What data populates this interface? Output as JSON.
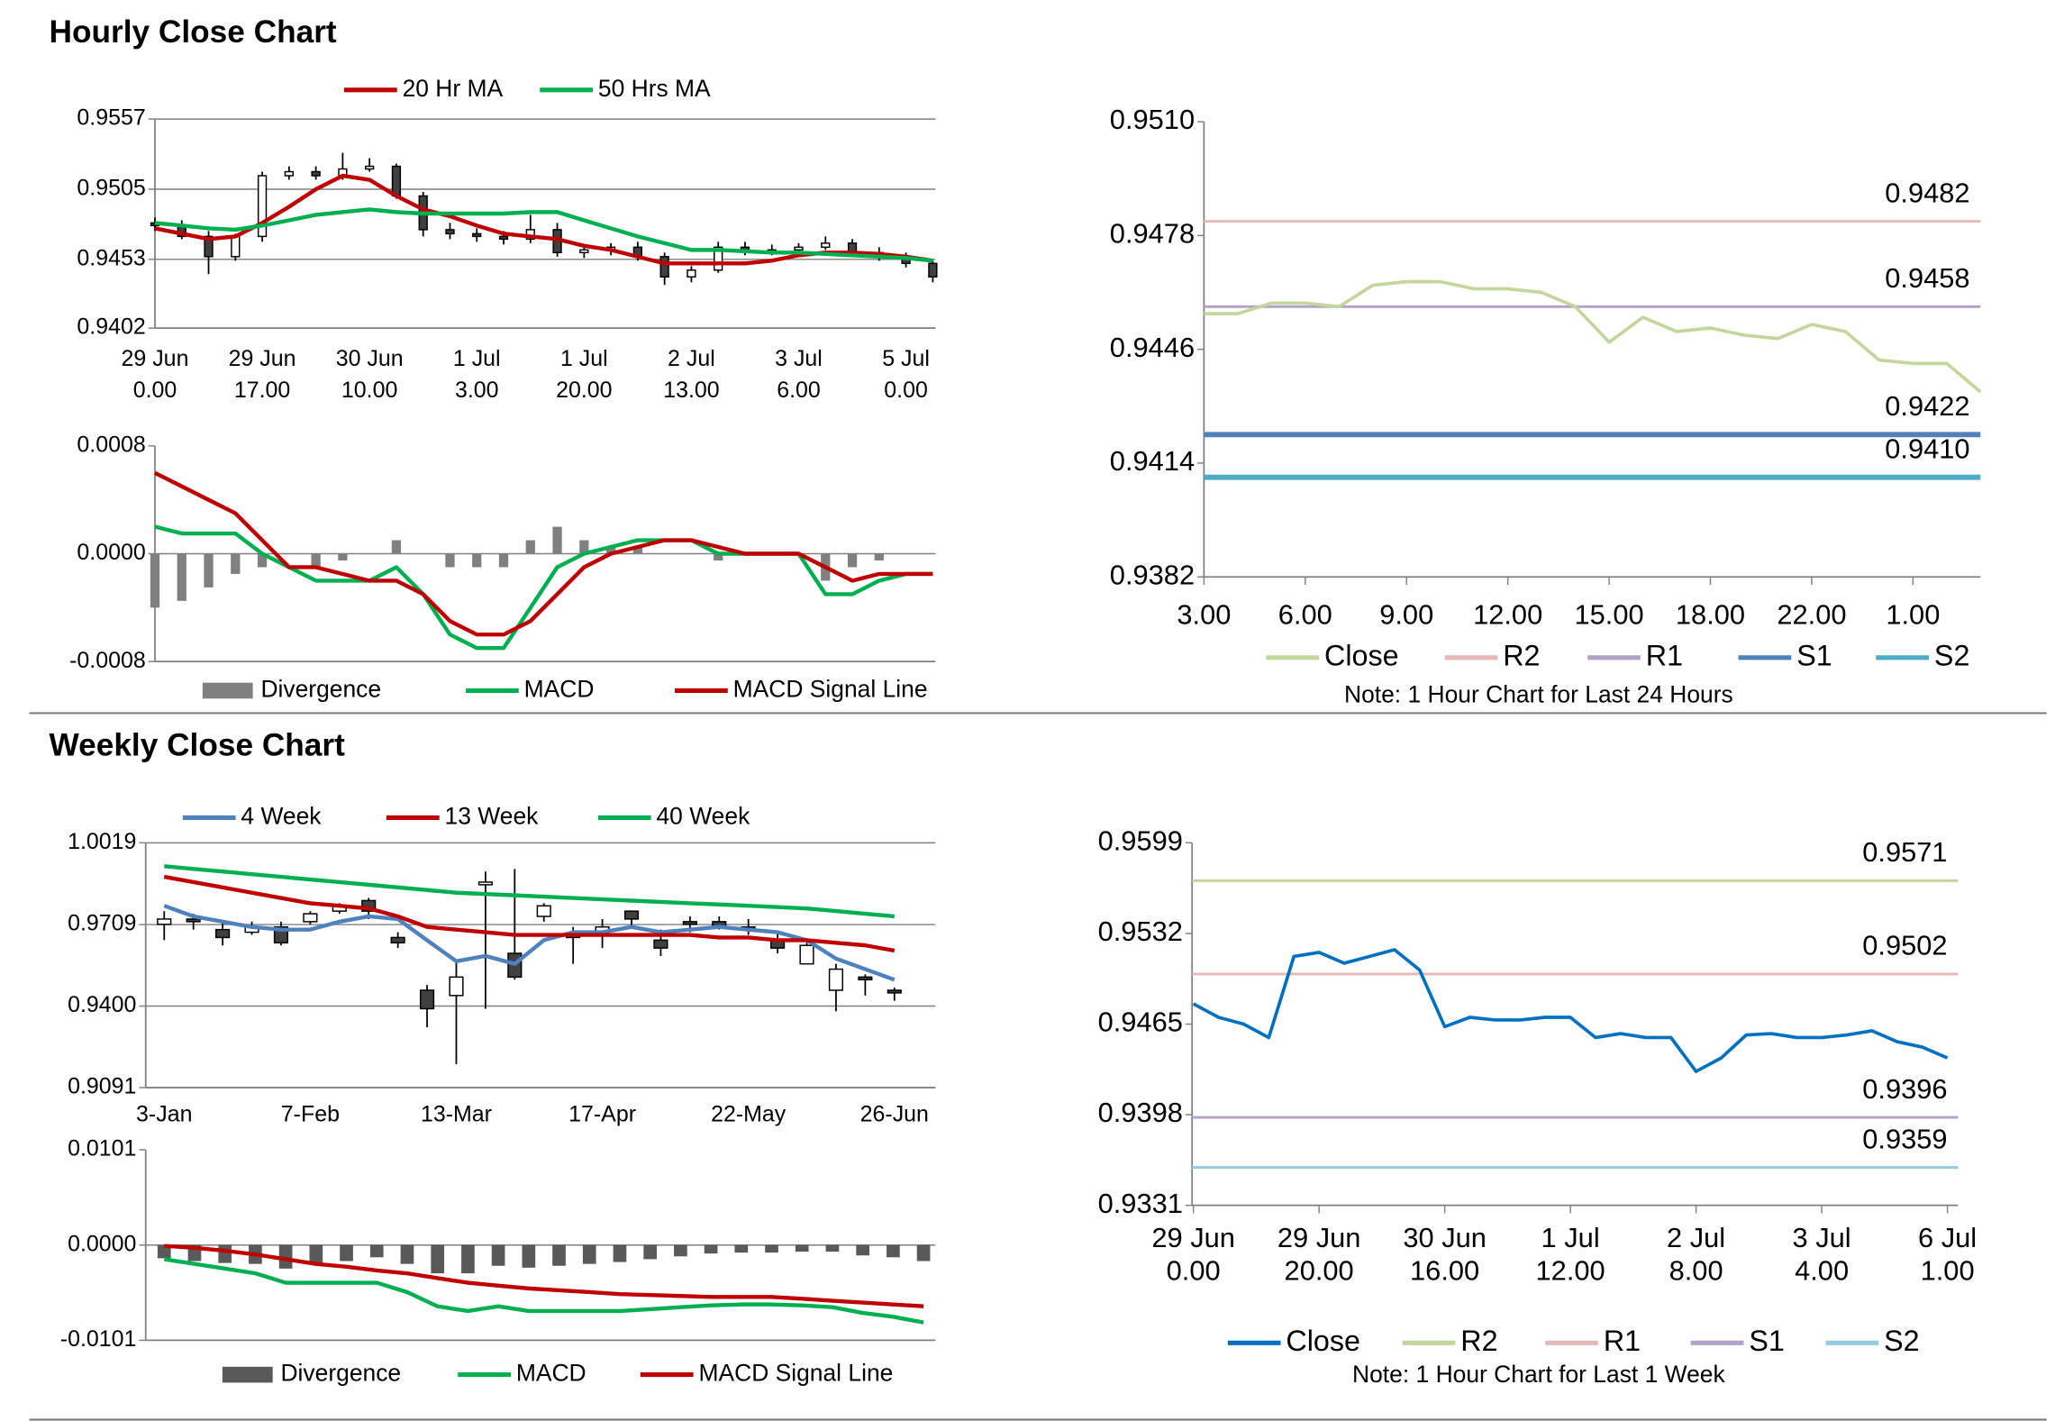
{
  "section_titles": [
    "Hourly Close Chart",
    "Weekly Close Chart"
  ],
  "chart_data": [
    {
      "type": "candlestick",
      "ylim": [
        0.9402,
        0.9557
      ],
      "yticks": [
        0.9402,
        0.9453,
        0.9505,
        0.9557
      ],
      "grid": true,
      "categories": [
        [
          "29 Jun",
          "0.00"
        ],
        null,
        null,
        null,
        [
          "29 Jun",
          "17.00"
        ],
        null,
        null,
        null,
        [
          "30 Jun",
          "10.00"
        ],
        null,
        null,
        null,
        [
          "1 Jul",
          "3.00"
        ],
        null,
        null,
        null,
        [
          "1 Jul",
          "20.00"
        ],
        null,
        null,
        null,
        [
          "2 Jul",
          "13.00"
        ],
        null,
        null,
        null,
        [
          "3 Jul",
          "6.00"
        ],
        null,
        null,
        null,
        [
          "5 Jul",
          "0.00"
        ],
        null
      ],
      "open": [
        0.948,
        0.9478,
        0.947,
        0.9455,
        0.947,
        0.9515,
        0.9518,
        0.9515,
        0.952,
        0.9522,
        0.95,
        0.9475,
        0.9472,
        0.947,
        0.9468,
        0.9475,
        0.9458,
        0.946,
        0.9462,
        0.9455,
        0.944,
        0.9445,
        0.9462,
        0.946,
        0.946,
        0.9462,
        0.9465,
        0.9458,
        0.9455,
        0.945
      ],
      "high": [
        0.9484,
        0.9482,
        0.9474,
        0.9472,
        0.9518,
        0.9522,
        0.9522,
        0.9532,
        0.9528,
        0.9524,
        0.9503,
        0.948,
        0.9476,
        0.9474,
        0.9486,
        0.948,
        0.9463,
        0.9465,
        0.9466,
        0.9458,
        0.9448,
        0.9466,
        0.9466,
        0.9464,
        0.9465,
        0.947,
        0.9468,
        0.9462,
        0.9458,
        0.9452
      ],
      "low": [
        0.9474,
        0.9468,
        0.9442,
        0.9452,
        0.9466,
        0.9512,
        0.9512,
        0.9512,
        0.9518,
        0.9498,
        0.947,
        0.9468,
        0.9466,
        0.9464,
        0.9465,
        0.9455,
        0.9454,
        0.9456,
        0.9452,
        0.9434,
        0.9436,
        0.9443,
        0.9456,
        0.9456,
        0.9457,
        0.946,
        0.9455,
        0.9452,
        0.9447,
        0.9436
      ],
      "close": [
        0.9478,
        0.947,
        0.9455,
        0.947,
        0.9515,
        0.9518,
        0.9515,
        0.952,
        0.9522,
        0.95,
        0.9475,
        0.9472,
        0.947,
        0.9468,
        0.9475,
        0.9458,
        0.946,
        0.9462,
        0.9455,
        0.944,
        0.9445,
        0.9462,
        0.946,
        0.946,
        0.9462,
        0.9465,
        0.9458,
        0.9455,
        0.945,
        0.944
      ],
      "series": [
        {
          "name": "20 Hr MA",
          "color": "#c00000",
          "values": [
            0.9476,
            0.9472,
            0.9468,
            0.947,
            0.948,
            0.9492,
            0.9505,
            0.9515,
            0.9512,
            0.95,
            0.949,
            0.9485,
            0.9478,
            0.9472,
            0.947,
            0.9468,
            0.9463,
            0.946,
            0.9455,
            0.945,
            0.945,
            0.945,
            0.945,
            0.9452,
            0.9456,
            0.9458,
            0.9458,
            0.9457,
            0.9455,
            0.9452
          ]
        },
        {
          "name": "50 Hrs MA",
          "color": "#00b050",
          "values": [
            0.948,
            0.9478,
            0.9476,
            0.9475,
            0.9478,
            0.9482,
            0.9486,
            0.9488,
            0.949,
            0.9488,
            0.9487,
            0.9487,
            0.9487,
            0.9487,
            0.9488,
            0.9488,
            0.9482,
            0.9476,
            0.947,
            0.9465,
            0.946,
            0.946,
            0.9459,
            0.9458,
            0.9458,
            0.9457,
            0.9456,
            0.9455,
            0.9454,
            0.9452
          ]
        }
      ]
    },
    {
      "type": "macd",
      "ylim": [
        -0.0008,
        0.0008
      ],
      "yticks": [
        -0.0008,
        {
          "value": 0,
          "label": "0.0000"
        },
        0.0008
      ],
      "grid": false,
      "series": [
        {
          "name": "Divergence",
          "type": "bar",
          "color": "#808080",
          "values": [
            -0.0004,
            -0.00035,
            -0.00025,
            -0.00015,
            -0.0001,
            0,
            -0.0001,
            -5e-05,
            0,
            0.0001,
            0,
            -0.0001,
            -0.0001,
            -0.0001,
            0.0001,
            0.0002,
            0.0001,
            5e-05,
            5e-05,
            0,
            0,
            -5e-05,
            0,
            0,
            0,
            -0.0002,
            -0.0001,
            -5e-05,
            0,
            0
          ]
        },
        {
          "name": "MACD",
          "type": "line",
          "color": "#00b050",
          "values": [
            0.0002,
            0.00015,
            0.00015,
            0.00015,
            0,
            -0.0001,
            -0.0002,
            -0.0002,
            -0.0002,
            -0.0001,
            -0.0003,
            -0.0006,
            -0.0007,
            -0.0007,
            -0.0004,
            -0.0001,
            0,
            5e-05,
            0.0001,
            0.0001,
            0.0001,
            0,
            0,
            0,
            0,
            -0.0003,
            -0.0003,
            -0.0002,
            -0.00015,
            -0.00015
          ]
        },
        {
          "name": "MACD Signal Line",
          "type": "line",
          "color": "#c00000",
          "values": [
            0.0006,
            0.0005,
            0.0004,
            0.0003,
            0.0001,
            -0.0001,
            -0.0001,
            -0.00015,
            -0.0002,
            -0.0002,
            -0.0003,
            -0.0005,
            -0.0006,
            -0.0006,
            -0.0005,
            -0.0003,
            -0.0001,
            0,
            5e-05,
            0.0001,
            0.0001,
            5e-05,
            0,
            0,
            0,
            -0.0001,
            -0.0002,
            -0.00015,
            -0.00015,
            -0.00015
          ]
        }
      ]
    },
    {
      "type": "line",
      "ylim": [
        0.9382,
        0.951
      ],
      "yticks": [
        0.9382,
        0.9414,
        0.9446,
        0.9478,
        {
          "value": 0.951,
          "label": "0.9510"
        }
      ],
      "grid": false,
      "categories": [
        "3.00",
        null,
        null,
        "6.00",
        null,
        null,
        "9.00",
        null,
        null,
        "12.00",
        null,
        null,
        "15.00",
        null,
        null,
        "18.00",
        null,
        null,
        "22.00",
        null,
        null,
        "1.00",
        null,
        null
      ],
      "series": [
        {
          "name": "Close",
          "color": "#c3d69b",
          "values": [
            0.9456,
            0.9456,
            0.9459,
            0.9459,
            0.9458,
            0.9464,
            0.9465,
            0.9465,
            0.9463,
            0.9463,
            0.9462,
            0.9458,
            0.9448,
            0.9455,
            0.9451,
            0.9452,
            0.945,
            0.9449,
            0.9453,
            0.9451,
            0.9443,
            0.9442,
            0.9442,
            0.9434
          ]
        }
      ],
      "levels": [
        {
          "name": "R2",
          "value": 0.9482,
          "color": "#e6b9b8"
        },
        {
          "name": "R1",
          "value": 0.9458,
          "color": "#b3a2c7"
        },
        {
          "name": "S1",
          "value": 0.9422,
          "color": "#4f81bd"
        },
        {
          "name": "S2",
          "value": 0.941,
          "value_label": "0.9410",
          "color": "#4bacc6"
        }
      ],
      "note": "Note: 1 Hour Chart for Last 24 Hours"
    },
    {
      "type": "candlestick",
      "ylim": [
        0.9091,
        1.0019
      ],
      "yticks": [
        0.9091,
        {
          "value": 0.94,
          "label": "0.9400"
        },
        0.9709,
        1.0019
      ],
      "grid": true,
      "categories": [
        "3-Jan",
        null,
        null,
        null,
        null,
        "7-Feb",
        null,
        null,
        null,
        null,
        "13-Mar",
        null,
        null,
        null,
        null,
        "17-Apr",
        null,
        null,
        null,
        null,
        "22-May",
        null,
        null,
        null,
        null,
        "26-Jun"
      ],
      "open": [
        0.971,
        0.973,
        0.969,
        0.968,
        0.97,
        0.972,
        0.976,
        0.98,
        0.966,
        0.946,
        0.944,
        0.986,
        0.96,
        0.974,
        0.967,
        0.968,
        0.976,
        0.965,
        0.972,
        0.972,
        0.97,
        0.965,
        0.956,
        0.946,
        0.951,
        0.946
      ],
      "high": [
        0.976,
        0.975,
        0.972,
        0.972,
        0.972,
        0.976,
        0.979,
        0.981,
        0.968,
        0.948,
        0.957,
        0.991,
        0.992,
        0.979,
        0.97,
        0.973,
        0.976,
        0.969,
        0.974,
        0.974,
        0.973,
        0.968,
        0.964,
        0.956,
        0.952,
        0.947
      ],
      "low": [
        0.965,
        0.969,
        0.963,
        0.967,
        0.963,
        0.971,
        0.975,
        0.973,
        0.962,
        0.932,
        0.918,
        0.939,
        0.95,
        0.972,
        0.956,
        0.962,
        0.97,
        0.959,
        0.968,
        0.969,
        0.967,
        0.96,
        0.956,
        0.938,
        0.944,
        0.942
      ],
      "close": [
        0.973,
        0.972,
        0.966,
        0.97,
        0.964,
        0.975,
        0.978,
        0.976,
        0.964,
        0.939,
        0.951,
        0.987,
        0.951,
        0.978,
        0.966,
        0.97,
        0.973,
        0.962,
        0.971,
        0.97,
        0.969,
        0.962,
        0.963,
        0.954,
        0.95,
        0.945
      ],
      "series": [
        {
          "name": "4 Week",
          "color": "#4f81bd",
          "values": [
            0.978,
            0.974,
            0.972,
            0.97,
            0.969,
            0.969,
            0.972,
            0.974,
            0.973,
            0.965,
            0.957,
            0.959,
            0.956,
            0.965,
            0.968,
            0.968,
            0.97,
            0.968,
            0.969,
            0.97,
            0.969,
            0.968,
            0.965,
            0.958,
            0.954,
            0.95
          ]
        },
        {
          "name": "13 Week",
          "color": "#c00000",
          "values": [
            0.989,
            0.987,
            0.985,
            0.983,
            0.981,
            0.979,
            0.978,
            0.977,
            0.974,
            0.97,
            0.969,
            0.968,
            0.967,
            0.967,
            0.967,
            0.967,
            0.967,
            0.967,
            0.967,
            0.966,
            0.966,
            0.965,
            0.965,
            0.964,
            0.963,
            0.961
          ]
        },
        {
          "name": "40 Week",
          "color": "#00b050",
          "values": [
            0.993,
            0.992,
            0.991,
            0.99,
            0.989,
            0.988,
            0.987,
            0.986,
            0.985,
            0.984,
            0.983,
            0.9825,
            0.982,
            0.9815,
            0.981,
            0.9805,
            0.98,
            0.9795,
            0.979,
            0.9785,
            0.978,
            0.9775,
            0.977,
            0.976,
            0.975,
            0.974
          ]
        }
      ]
    },
    {
      "type": "macd",
      "ylim": [
        -0.0101,
        0.0101
      ],
      "yticks": [
        -0.0101,
        {
          "value": 0,
          "label": "0.0000"
        },
        0.0101
      ],
      "grid": false,
      "series": [
        {
          "name": "Divergence",
          "type": "bar",
          "color": "#595959",
          "values": [
            -0.0014,
            -0.0017,
            -0.0019,
            -0.002,
            -0.0025,
            -0.002,
            -0.0017,
            -0.0013,
            -0.002,
            -0.003,
            -0.003,
            -0.0022,
            -0.0024,
            -0.0022,
            -0.002,
            -0.0018,
            -0.0015,
            -0.0012,
            -0.0009,
            -0.0008,
            -0.0008,
            -0.0007,
            -0.0007,
            -0.0011,
            -0.0013,
            -0.0017
          ]
        },
        {
          "name": "MACD",
          "type": "line",
          "color": "#00b050",
          "values": [
            -0.0015,
            -0.002,
            -0.0025,
            -0.003,
            -0.004,
            -0.004,
            -0.004,
            -0.004,
            -0.005,
            -0.0065,
            -0.007,
            -0.0065,
            -0.007,
            -0.007,
            -0.007,
            -0.007,
            -0.0068,
            -0.0066,
            -0.0064,
            -0.0063,
            -0.0063,
            -0.0064,
            -0.0066,
            -0.0072,
            -0.0076,
            -0.0082
          ]
        },
        {
          "name": "MACD Signal Line",
          "type": "line",
          "color": "#c00000",
          "values": [
            -0.0001,
            -0.0003,
            -0.0006,
            -0.001,
            -0.0015,
            -0.002,
            -0.0023,
            -0.0027,
            -0.003,
            -0.0035,
            -0.004,
            -0.0043,
            -0.0046,
            -0.0048,
            -0.005,
            -0.0052,
            -0.0053,
            -0.0054,
            -0.0055,
            -0.0055,
            -0.0055,
            -0.0057,
            -0.0059,
            -0.0061,
            -0.0063,
            -0.0065
          ]
        }
      ]
    },
    {
      "type": "line",
      "ylim": [
        0.9331,
        0.9599
      ],
      "yticks": [
        0.9331,
        0.9398,
        0.9465,
        0.9532,
        0.9599
      ],
      "grid": false,
      "categories": [
        [
          "29 Jun",
          "0.00"
        ],
        null,
        null,
        null,
        null,
        [
          "29 Jun",
          "20.00"
        ],
        null,
        null,
        null,
        null,
        [
          "30 Jun",
          "16.00"
        ],
        null,
        null,
        null,
        null,
        [
          "1 Jul",
          "12.00"
        ],
        null,
        null,
        null,
        null,
        [
          "2 Jul",
          "8.00"
        ],
        null,
        null,
        null,
        null,
        [
          "3 Jul",
          "4.00"
        ],
        null,
        null,
        null,
        null,
        [
          "6 Jul",
          "1.00"
        ]
      ],
      "series": [
        {
          "name": "Close",
          "color": "#0070c0",
          "values": [
            0.948,
            0.947,
            0.9465,
            0.9455,
            0.9515,
            0.9518,
            0.951,
            0.9515,
            0.952,
            0.9505,
            0.9463,
            0.947,
            0.9468,
            0.9468,
            0.947,
            0.947,
            0.9455,
            0.9458,
            0.9455,
            0.9455,
            0.943,
            0.944,
            0.9457,
            0.9458,
            0.9455,
            0.9455,
            0.9457,
            0.946,
            0.9452,
            0.9448,
            0.944
          ]
        }
      ],
      "levels": [
        {
          "name": "R2",
          "value": 0.9571,
          "color": "#c3d69b"
        },
        {
          "name": "R1",
          "value": 0.9502,
          "color": "#e6b9b8"
        },
        {
          "name": "S1",
          "value": 0.9396,
          "color": "#b3a2c7"
        },
        {
          "name": "S2",
          "value": 0.9359,
          "color": "#93cddd"
        }
      ],
      "note": "Note: 1 Hour Chart for Last 1 Week"
    }
  ]
}
